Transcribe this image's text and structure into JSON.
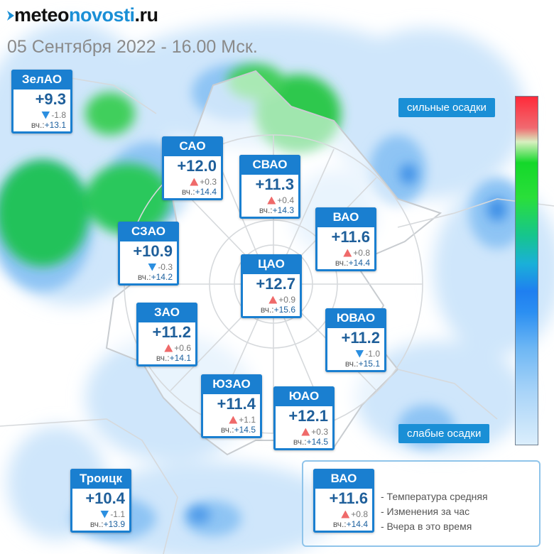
{
  "header": {
    "logo_part1": "meteo",
    "logo_part2": "novosti",
    "logo_part3": ".ru",
    "datetime": "05 Сентября 2022 - 16.00 Мск."
  },
  "colors": {
    "accent": "#1a7fd0",
    "temperature_text": "#1f5f9a",
    "rise": "#ef6a6a",
    "fall": "#2b8fe0"
  },
  "yesterday_prefix": "вч.:",
  "districts": [
    {
      "id": "zelao",
      "name": "ЗелАО",
      "temp": "+9.3",
      "trend": "down",
      "change": "-1.8",
      "yesterday": "+13.1"
    },
    {
      "id": "sao",
      "name": "САО",
      "temp": "+12.0",
      "trend": "up",
      "change": "+0.3",
      "yesterday": "+14.4"
    },
    {
      "id": "svao",
      "name": "СВАО",
      "temp": "+11.3",
      "trend": "up",
      "change": "+0.4",
      "yesterday": "+14.3"
    },
    {
      "id": "vao",
      "name": "ВАО",
      "temp": "+11.6",
      "trend": "up",
      "change": "+0.8",
      "yesterday": "+14.4"
    },
    {
      "id": "szao",
      "name": "СЗАО",
      "temp": "+10.9",
      "trend": "down",
      "change": "-0.3",
      "yesterday": "+14.2"
    },
    {
      "id": "cao",
      "name": "ЦАО",
      "temp": "+12.7",
      "trend": "up",
      "change": "+0.9",
      "yesterday": "+15.6"
    },
    {
      "id": "zao",
      "name": "ЗАО",
      "temp": "+11.2",
      "trend": "up",
      "change": "+0.6",
      "yesterday": "+14.1"
    },
    {
      "id": "yuvao",
      "name": "ЮВАО",
      "temp": "+11.2",
      "trend": "down",
      "change": "-1.0",
      "yesterday": "+15.1"
    },
    {
      "id": "yuzao",
      "name": "ЮЗАО",
      "temp": "+11.4",
      "trend": "up",
      "change": "+1.1",
      "yesterday": "+14.5"
    },
    {
      "id": "yuao",
      "name": "ЮАО",
      "temp": "+12.1",
      "trend": "up",
      "change": "+0.3",
      "yesterday": "+14.5"
    },
    {
      "id": "troitsk",
      "name": "Троицк",
      "temp": "+10.4",
      "trend": "down",
      "change": "-1.1",
      "yesterday": "+13.9"
    }
  ],
  "scale": {
    "top_label": "сильные осадки",
    "bottom_label": "слабые осадки"
  },
  "legend": {
    "sample": {
      "name": "ВАО",
      "temp": "+11.6",
      "trend": "up",
      "change": "+0.8",
      "yesterday": "+14.4"
    },
    "items": [
      "- Температура средняя",
      "- Изменения за час",
      "- Вчера в это время"
    ]
  }
}
